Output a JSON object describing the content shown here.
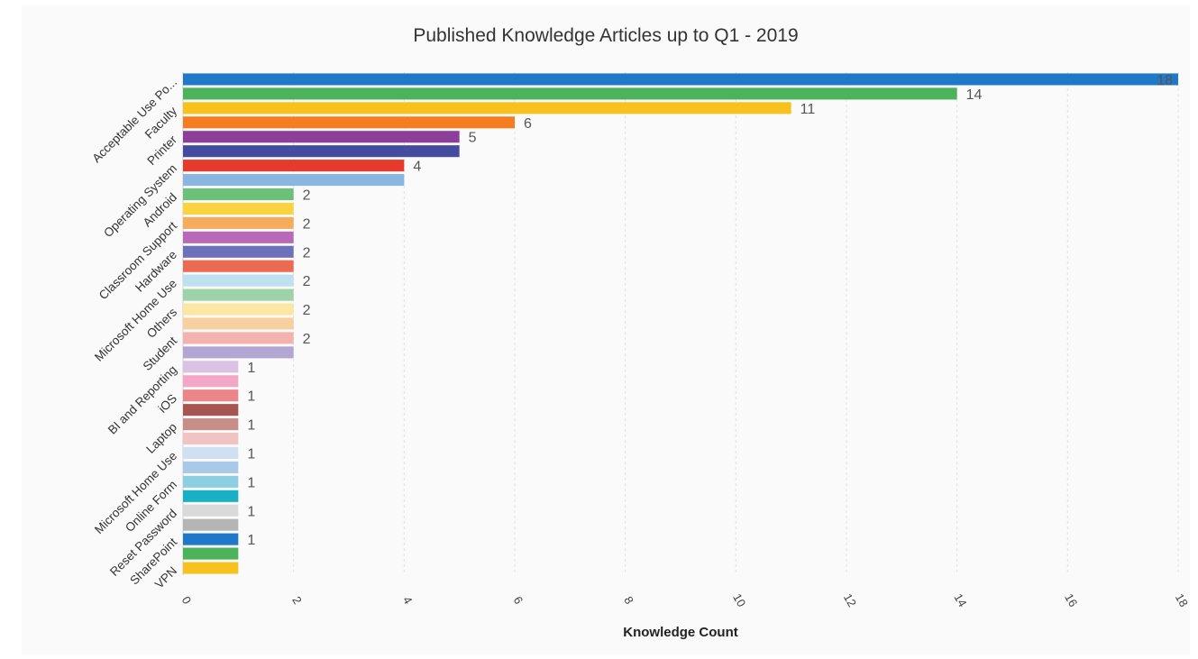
{
  "chart_data": {
    "type": "bar",
    "orientation": "horizontal",
    "title": "Published Knowledge Articles up to Q1 - 2019",
    "xlabel": "Knowledge Count",
    "ylabel": "",
    "xlim": [
      0,
      18
    ],
    "x_ticks": [
      0,
      2,
      4,
      6,
      8,
      10,
      12,
      14,
      16,
      18
    ],
    "grid": true,
    "legend": "none",
    "categories": [
      "Acceptable Use Po...",
      "",
      "Faculty",
      "",
      "Printer",
      "",
      "Operating System",
      "",
      "Android",
      "",
      "Classroom Support",
      "",
      "Hardware",
      "",
      "Microsoft Home Use",
      "",
      "Others",
      "",
      "Student",
      "",
      "BI and Reporting",
      "",
      "iOS",
      "",
      "Laptop",
      "",
      "Microsoft Home Use",
      "",
      "Online Form",
      "",
      "Reset Password",
      "",
      "SharePoint",
      "",
      "VPN"
    ],
    "values": [
      18,
      14,
      11,
      6,
      5,
      5,
      4,
      4,
      2,
      2,
      2,
      2,
      2,
      2,
      2,
      2,
      2,
      2,
      2,
      2,
      1,
      1,
      1,
      1,
      1,
      1,
      1,
      1,
      1,
      1,
      1,
      1,
      1,
      1,
      1
    ],
    "value_labels": [
      "18",
      "14",
      "11",
      "6",
      "5",
      "",
      "4",
      "",
      "2",
      "",
      "2",
      "",
      "2",
      "",
      "2",
      "",
      "2",
      "",
      "2",
      "",
      "1",
      "",
      "1",
      "",
      "1",
      "",
      "1",
      "",
      "1",
      "",
      "1",
      "",
      "1",
      "",
      ""
    ],
    "colors": [
      "#1f78c8",
      "#4cb35a",
      "#f7c11e",
      "#f47d20",
      "#8b3f98",
      "#444c9f",
      "#e53a2c",
      "#8ab6e1",
      "#6cc07a",
      "#f9d43f",
      "#f6ad5b",
      "#b869b8",
      "#6d71b7",
      "#ea6a52",
      "#bfe0ef",
      "#9fd2a6",
      "#fbe7a3",
      "#f8cf9e",
      "#f2b3ae",
      "#b3a6d3",
      "#dcc2e2",
      "#f1a7c5",
      "#ec8589",
      "#a65550",
      "#c78e89",
      "#f0c4c3",
      "#cfe0f2",
      "#a9c9e8",
      "#8dcfe2",
      "#19b0c6",
      "#dadada",
      "#b5b5b5",
      "#1f78c8",
      "#4cb35a",
      "#f7c11e"
    ]
  }
}
